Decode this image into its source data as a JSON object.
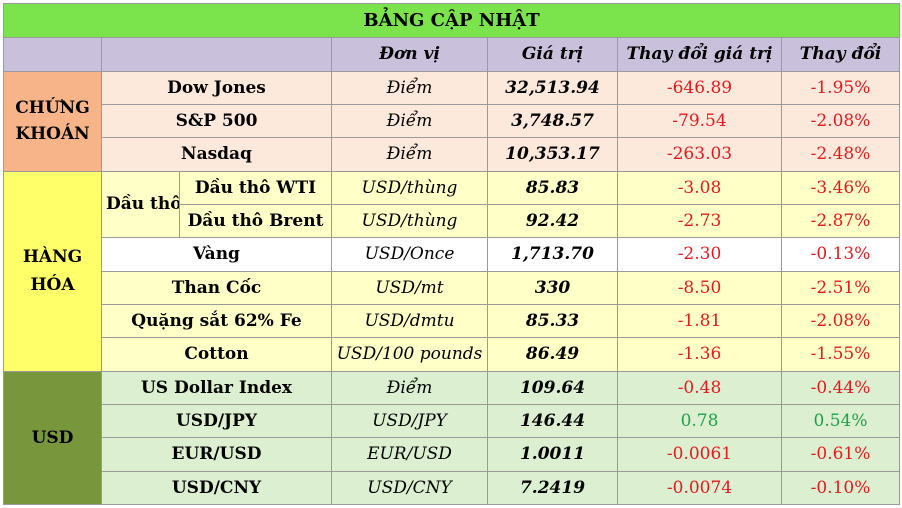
{
  "title": "BẢNG CẬP NHẬT",
  "headers": {
    "unit": "Đơn vị",
    "value": "Giá trị",
    "change_value": "Thay đổi giá trị",
    "change_pct": "Thay đổi"
  },
  "sections": {
    "stocks": "CHỨNG KHOÁN",
    "commodities": "HÀNG HÓA",
    "usd": "USD"
  },
  "oil_group": "Dầu thô",
  "rows": {
    "dow": {
      "name": "Dow Jones",
      "unit": "Điểm",
      "value": "32,513.94",
      "change": "-646.89",
      "pct": "-1.95%"
    },
    "sp500": {
      "name": "S&P 500",
      "unit": "Điểm",
      "value": "3,748.57",
      "change": "-79.54",
      "pct": "-2.08%"
    },
    "nasdaq": {
      "name": "Nasdaq",
      "unit": "Điểm",
      "value": "10,353.17",
      "change": "-263.03",
      "pct": "-2.48%"
    },
    "wti": {
      "name": "Dầu thô WTI",
      "unit": "USD/thùng",
      "value": "85.83",
      "change": "-3.08",
      "pct": "-3.46%"
    },
    "brent": {
      "name": "Dầu thô Brent",
      "unit": "USD/thùng",
      "value": "92.42",
      "change": "-2.73",
      "pct": "-2.87%"
    },
    "gold": {
      "name": "Vàng",
      "unit": "USD/Once",
      "value": "1,713.70",
      "change": "-2.30",
      "pct": "-0.13%"
    },
    "coal": {
      "name": "Than Cốc",
      "unit": "USD/mt",
      "value": "330",
      "change": "-8.50",
      "pct": "-2.51%"
    },
    "iron": {
      "name": "Quặng sắt 62% Fe",
      "unit": "USD/dmtu",
      "value": "85.33",
      "change": "-1.81",
      "pct": "-2.08%"
    },
    "cotton": {
      "name": "Cotton",
      "unit": "USD/100 pounds",
      "value": "86.49",
      "change": "-1.36",
      "pct": "-1.55%"
    },
    "dxy": {
      "name": "US Dollar Index",
      "unit": "Điểm",
      "value": "109.64",
      "change": "-0.48",
      "pct": "-0.44%"
    },
    "usdjpy": {
      "name": "USD/JPY",
      "unit": "USD/JPY",
      "value": "146.44",
      "change": "0.78",
      "pct": "0.54%"
    },
    "eurusd": {
      "name": "EUR/USD",
      "unit": "EUR/USD",
      "value": "1.0011",
      "change": "-0.0061",
      "pct": "-0.61%"
    },
    "usdcny": {
      "name": "USD/CNY",
      "unit": "USD/CNY",
      "value": "7.2419",
      "change": "-0.0074",
      "pct": "-0.10%"
    }
  },
  "colors": {
    "negative": "#e6191e",
    "positive": "#1fa14a",
    "title_bg": "#7be34c",
    "header_bg": "#c9c0dc"
  }
}
